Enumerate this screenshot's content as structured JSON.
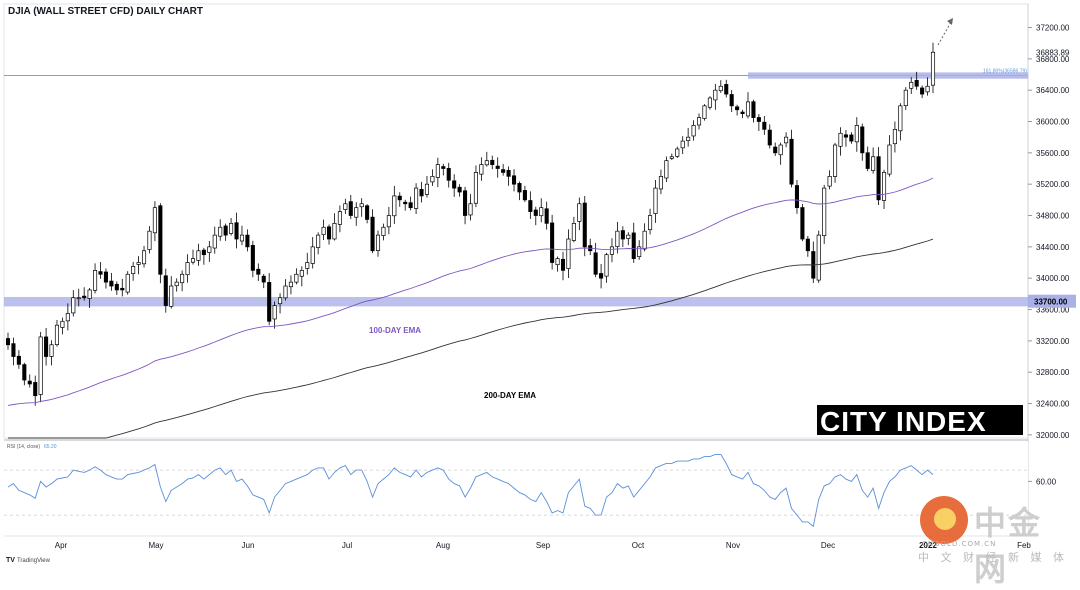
{
  "title": "DJIA (WALL STREET CFD) DAILY CHART",
  "brand": "CITY INDEX",
  "tradingview": "TradingView",
  "watermark": {
    "cn": "中金网",
    "domain": "CNGOLD.COM.CN",
    "tagline": "中 文 财 经 新 媒 体"
  },
  "colors": {
    "bull": "#ffffff",
    "bear": "#000000",
    "ema100": "#7e57c2",
    "ema200": "#333333",
    "zone": "#aab0e8",
    "rsi": "#5b8fd9",
    "resistance_line": "#5b9bd5"
  },
  "chart_data": {
    "type": "candlestick",
    "title": "DJIA (WALL STREET CFD) DAILY CHART",
    "y_ticks": [
      32000,
      32400,
      32800,
      33200,
      33600,
      34000,
      34400,
      34800,
      35200,
      35600,
      36000,
      36400,
      36800,
      37200
    ],
    "y_tick_labels": [
      "32000.00",
      "32400.00",
      "32800.00",
      "33200.00",
      "33600.00",
      "34000.00",
      "34400.00",
      "34800.00",
      "35200.00",
      "35600.00",
      "36000.00",
      "36400.00",
      "36800.00",
      "37200.00"
    ],
    "ylim": [
      31960,
      37500
    ],
    "x_labels": [
      "Apr",
      "May",
      "Jun",
      "Jul",
      "Aug",
      "Sep",
      "Oct",
      "Nov",
      "Dec",
      "2022",
      "Feb"
    ],
    "last_price": 36883.89,
    "last_price_label": "36883.89",
    "support_level": 33700,
    "support_label": "33700.00",
    "resistance": {
      "value": 36586.79,
      "label": "161.80%(36586.79)"
    },
    "close": [
      33150,
      33000,
      32900,
      32700,
      32650,
      32500,
      33250,
      33000,
      33150,
      33400,
      33450,
      33550,
      33750,
      33750,
      33750,
      33850,
      34100,
      34050,
      33950,
      33900,
      33850,
      33850,
      34050,
      34150,
      34200,
      34350,
      34600,
      34900,
      34050,
      33650,
      33900,
      33950,
      34050,
      34200,
      34250,
      34350,
      34300,
      34400,
      34550,
      34650,
      34550,
      34700,
      34500,
      34550,
      34400,
      34100,
      34050,
      33950,
      33450,
      33650,
      33750,
      33900,
      33950,
      34050,
      34100,
      34200,
      34400,
      34550,
      34650,
      34500,
      34700,
      34850,
      34950,
      34800,
      34900,
      34950,
      34750,
      34350,
      34550,
      34650,
      34800,
      35050,
      35000,
      34950,
      34900,
      35150,
      35050,
      35200,
      35300,
      35450,
      35400,
      35250,
      35150,
      35100,
      34800,
      34950,
      35350,
      35450,
      35500,
      35450,
      35400,
      35350,
      35300,
      35200,
      35100,
      35000,
      34850,
      34800,
      34900,
      34700,
      34200,
      34250,
      34100,
      34500,
      34700,
      34950,
      34400,
      34350,
      34050,
      34000,
      34300,
      34400,
      34600,
      34500,
      34550,
      34250,
      34400,
      34600,
      34800,
      35150,
      35300,
      35500,
      35550,
      35650,
      35750,
      35800,
      35950,
      36050,
      36200,
      36300,
      36400,
      36450,
      36350,
      36200,
      36150,
      36100,
      36250,
      36050,
      36000,
      35900,
      35700,
      35600,
      35700,
      35800,
      35200,
      34900,
      34500,
      34350,
      34000,
      34550,
      35150,
      35300,
      35700,
      35850,
      35800,
      35750,
      35950,
      35600,
      35400,
      35550,
      35000,
      35350,
      35700,
      35900,
      36200,
      36400,
      36500,
      36450,
      36350,
      36450,
      36884
    ],
    "ema100_start_value": 31960,
    "ema200_start_value": 31960,
    "ema_labels": [
      "100-DAY EMA",
      "200-DAY EMA"
    ],
    "rsi": {
      "label": "RSI (14, close)",
      "value_label": "65.20",
      "tick_label": "60.00",
      "values": [
        55,
        58,
        52,
        50,
        48,
        45,
        60,
        55,
        58,
        62,
        63,
        64,
        70,
        69,
        68,
        70,
        73,
        70,
        66,
        64,
        62,
        62,
        66,
        67,
        68,
        70,
        72,
        75,
        55,
        42,
        52,
        55,
        58,
        62,
        63,
        66,
        62,
        66,
        70,
        72,
        66,
        70,
        60,
        62,
        56,
        48,
        46,
        44,
        32,
        46,
        52,
        58,
        60,
        62,
        64,
        66,
        70,
        72,
        72,
        62,
        68,
        72,
        74,
        66,
        70,
        70,
        60,
        46,
        58,
        62,
        66,
        72,
        68,
        66,
        64,
        70,
        64,
        68,
        70,
        72,
        70,
        62,
        58,
        56,
        46,
        54,
        64,
        66,
        68,
        64,
        62,
        60,
        58,
        54,
        50,
        48,
        44,
        42,
        50,
        42,
        32,
        34,
        32,
        50,
        56,
        62,
        38,
        36,
        30,
        30,
        46,
        50,
        58,
        54,
        56,
        46,
        52,
        58,
        64,
        72,
        74,
        76,
        76,
        78,
        78,
        78,
        80,
        80,
        82,
        82,
        84,
        84,
        76,
        66,
        64,
        62,
        68,
        58,
        56,
        52,
        46,
        44,
        50,
        54,
        36,
        30,
        24,
        24,
        20,
        44,
        56,
        58,
        64,
        66,
        62,
        60,
        66,
        52,
        46,
        54,
        36,
        50,
        60,
        64,
        70,
        72,
        74,
        70,
        66,
        70,
        66
      ]
    }
  }
}
